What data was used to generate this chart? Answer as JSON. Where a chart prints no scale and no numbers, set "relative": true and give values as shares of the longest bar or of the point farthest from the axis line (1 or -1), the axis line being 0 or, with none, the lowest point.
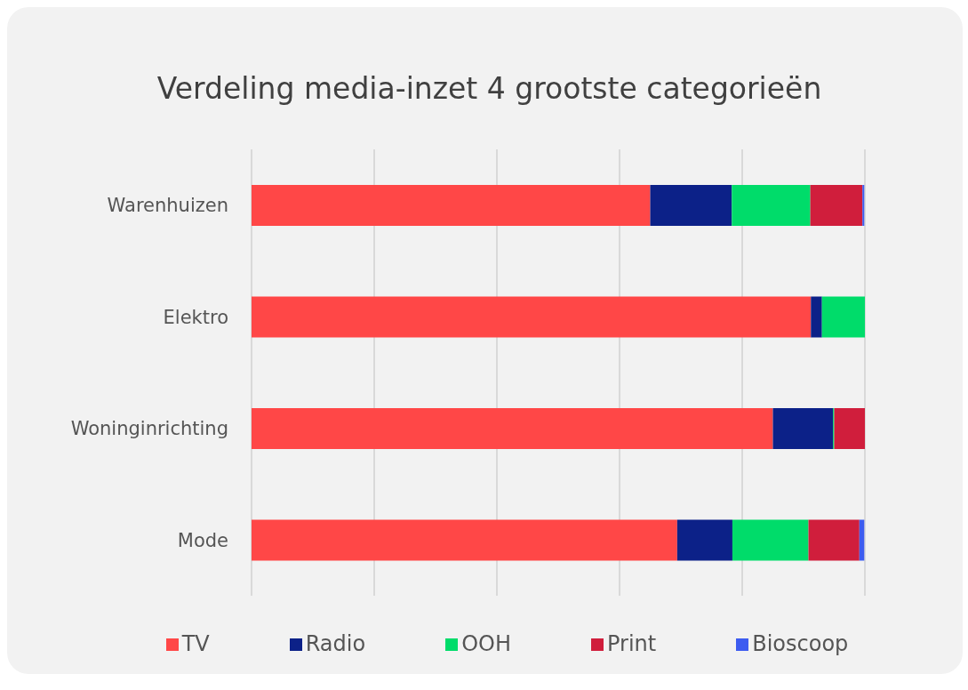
{
  "chart_data": {
    "type": "bar",
    "title": "Verdeling media-inzet 4 grootste categorieën",
    "orientation": "horizontal",
    "stacked": true,
    "relative": true,
    "grid": "x",
    "legend": "bottom",
    "categories": [
      "Warenhuizen",
      "Elektro",
      "Woninginrichting",
      "Mode"
    ],
    "series": [
      {
        "name": "TV",
        "color": "#ff4747",
        "values": [
          0.65,
          0.912,
          0.85,
          0.694
        ]
      },
      {
        "name": "Radio",
        "color": "#0c2188",
        "values": [
          0.133,
          0.018,
          0.098,
          0.09
        ]
      },
      {
        "name": "OOH",
        "color": "#00dc6a",
        "values": [
          0.128,
          0.07,
          0.002,
          0.124
        ]
      },
      {
        "name": "Print",
        "color": "#d01e3c",
        "values": [
          0.085,
          0,
          0.05,
          0.083
        ]
      },
      {
        "name": "Bioscoop",
        "color": "#3d5cf0",
        "values": [
          0.003,
          0,
          0,
          0.008
        ]
      }
    ]
  }
}
